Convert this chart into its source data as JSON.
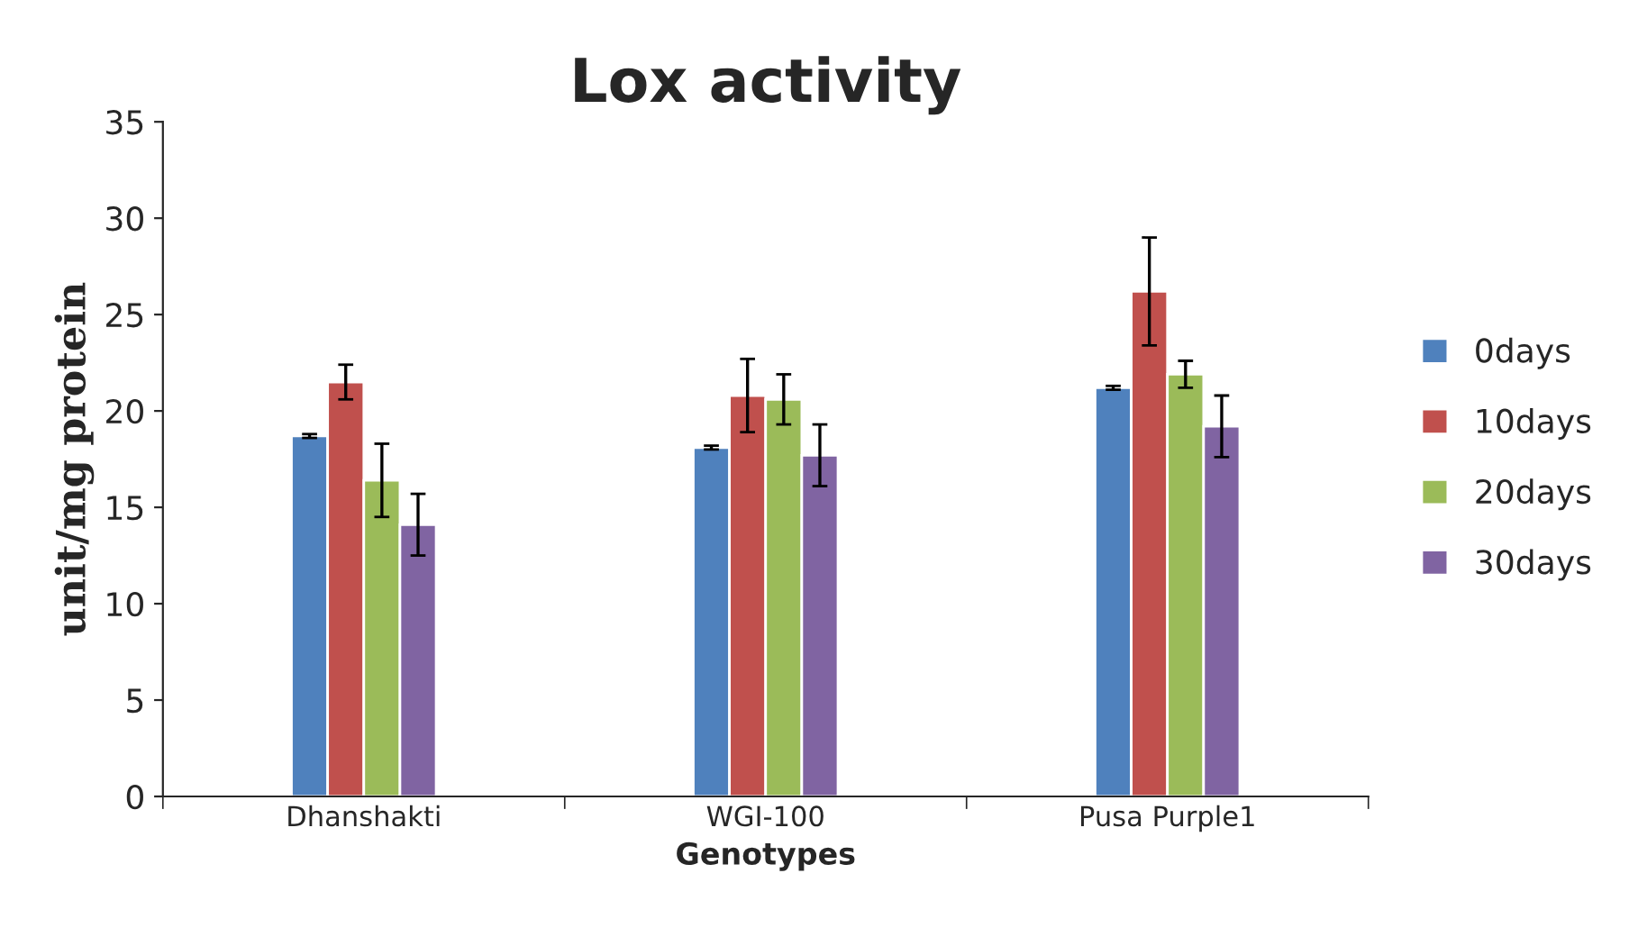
{
  "chart_data": {
    "type": "bar",
    "title": "Lox activity",
    "xlabel": "Genotypes",
    "ylabel": "unit/mg protein",
    "categories": [
      "Dhanshakti",
      "WGI-100",
      "Pusa Purple1"
    ],
    "series": [
      {
        "name": "0days",
        "color": "#4f81bd",
        "values": [
          18.7,
          18.1,
          21.2
        ],
        "errors": [
          0.1,
          0.1,
          0.1
        ]
      },
      {
        "name": "10days",
        "color": "#c0504d",
        "values": [
          21.5,
          20.8,
          26.2
        ],
        "errors": [
          0.9,
          1.9,
          2.8
        ]
      },
      {
        "name": "20days",
        "color": "#9bbb59",
        "values": [
          16.4,
          20.6,
          21.9
        ],
        "errors": [
          1.9,
          1.3,
          0.7
        ]
      },
      {
        "name": "30days",
        "color": "#8064a2",
        "values": [
          14.1,
          17.7,
          19.2
        ],
        "errors": [
          1.6,
          1.6,
          1.6
        ]
      }
    ],
    "ylim": [
      0,
      35
    ],
    "yticks": [
      0,
      5,
      10,
      15,
      20,
      25,
      30,
      35
    ],
    "grid": false,
    "legend": "right"
  }
}
